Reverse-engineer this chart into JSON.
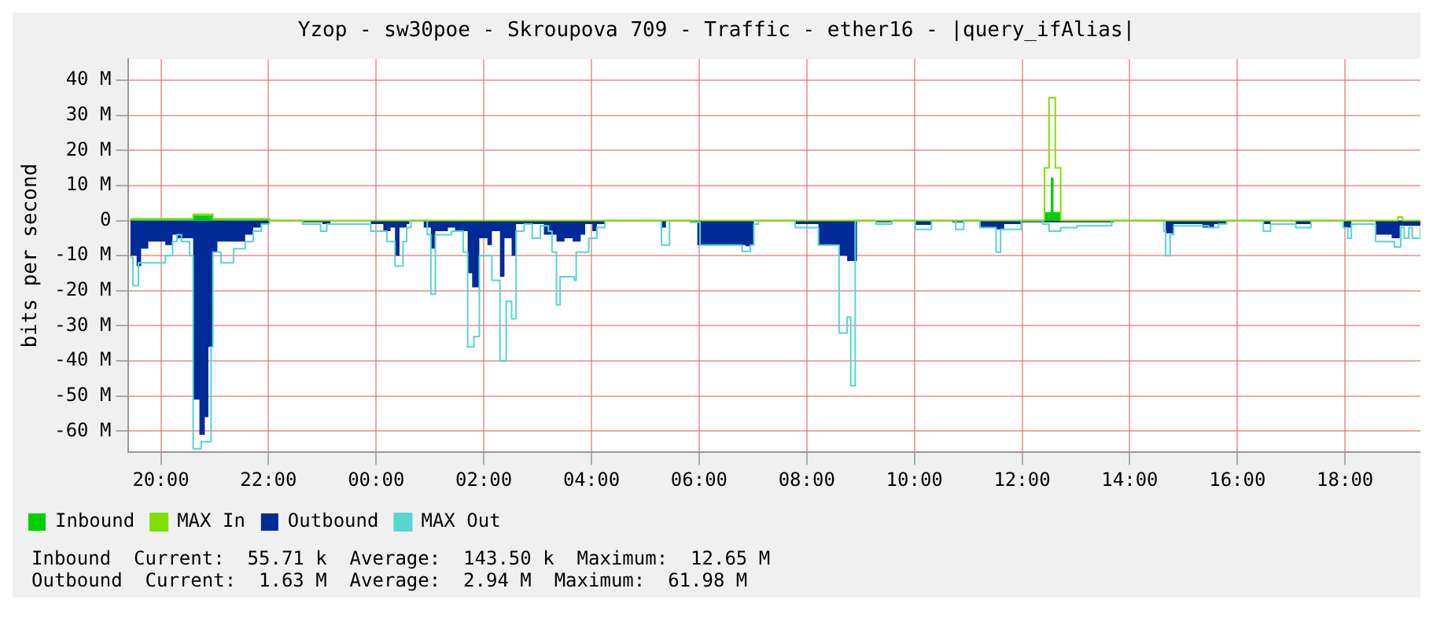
{
  "chart_data": {
    "type": "area",
    "title": "Yzop - sw30poe - Skroupova 709 - Traffic - ether16 - |query_ifAlias|",
    "ylabel": "bits per second",
    "xlim": [
      "--01-01T19:24",
      "--01-02T19:24"
    ],
    "xticks": [
      {
        "value": "--01-01T20:00",
        "label": "20:00"
      },
      {
        "value": "--01-01T22:00",
        "label": "22:00"
      },
      {
        "value": "--01-02T00:00",
        "label": "00:00"
      },
      {
        "value": "--01-02T02:00",
        "label": "02:00"
      },
      {
        "value": "--01-02T04:00",
        "label": "04:00"
      },
      {
        "value": "--01-02T06:00",
        "label": "06:00"
      },
      {
        "value": "--01-02T08:00",
        "label": "08:00"
      },
      {
        "value": "--01-02T10:00",
        "label": "10:00"
      },
      {
        "value": "--01-02T12:00",
        "label": "12:00"
      },
      {
        "value": "--01-02T14:00",
        "label": "14:00"
      },
      {
        "value": "--01-02T16:00",
        "label": "16:00"
      },
      {
        "value": "--01-02T18:00",
        "label": "18:00"
      }
    ],
    "ylim": [
      -66,
      46
    ],
    "yticks": [
      {
        "value": -60,
        "label": "-60 M"
      },
      {
        "value": -50,
        "label": "-50 M"
      },
      {
        "value": -40,
        "label": "-40 M"
      },
      {
        "value": -30,
        "label": "-30 M"
      },
      {
        "value": -20,
        "label": "-20 M"
      },
      {
        "value": -10,
        "label": "-10 M"
      },
      0,
      {
        "value": 10,
        "label": "10 M"
      },
      {
        "value": 20,
        "label": "20 M"
      },
      {
        "value": 30,
        "label": "30 M"
      },
      {
        "value": 40,
        "label": "40 M"
      }
    ],
    "grid": true,
    "legend": "bottom left",
    "series": [
      {
        "name": "Inbound",
        "type": "area",
        "color": "#00cf00",
        "x": [
          "--01-01T19:26",
          "--01-01T20:36",
          "--01-01T20:58",
          "--01-01T22:01",
          "--01-02T12:25",
          "--01-02T12:32",
          "--01-02T12:35",
          "--01-02T12:43",
          "--01-02T19:24"
        ],
        "values": [
          0.3,
          1.5,
          0.3,
          0,
          2.4,
          12.2,
          2.4,
          0,
          0
        ]
      },
      {
        "name": "MAX In",
        "type": "step",
        "color": "#80e000",
        "x": [
          "--01-01T19:26",
          "--01-01T20:36",
          "--01-01T20:58",
          "--01-01T22:01",
          "--01-02T12:23",
          "--01-02T12:25",
          "--01-02T12:30",
          "--01-02T12:37",
          "--01-02T12:43",
          "--01-02T18:48",
          "--01-02T18:59",
          "--01-02T19:04",
          "--01-02T19:24"
        ],
        "values": [
          0.5,
          1.8,
          0.5,
          0,
          0,
          15,
          35,
          15,
          0,
          0,
          1,
          0,
          0
        ]
      },
      {
        "name": "Outbound",
        "type": "area",
        "color": "#002a97",
        "x": [
          "--01-01T19:26",
          "--01-01T19:33",
          "--01-01T19:38",
          "--01-01T19:46",
          "--01-01T20:05",
          "--01-01T20:13",
          "--01-01T20:18",
          "--01-01T20:36",
          "--01-01T20:43",
          "--01-01T20:49",
          "--01-01T20:53",
          "--01-01T20:58",
          "--01-01T21:03",
          "--01-01T21:34",
          "--01-01T21:43",
          "--01-01T21:52",
          "--01-01T22:01",
          "--01-01T22:38",
          "--01-01T23:00",
          "--01-01T23:09",
          "--01-01T23:54",
          "--01-02T00:08",
          "--01-02T00:16",
          "--01-02T00:21",
          "--01-02T00:26",
          "--01-02T00:34",
          "--01-02T00:37",
          "--01-02T00:53",
          "--01-02T01:01",
          "--01-02T01:06",
          "--01-02T01:20",
          "--01-02T01:28",
          "--01-02T01:42",
          "--01-02T01:47",
          "--01-02T01:55",
          "--01-02T02:04",
          "--01-02T02:09",
          "--01-02T02:18",
          "--01-02T02:23",
          "--01-02T02:31",
          "--01-02T02:36",
          "--01-02T02:58",
          "--01-02T03:07",
          "--01-02T03:21",
          "--01-02T03:30",
          "--01-02T03:39",
          "--01-02T03:48",
          "--01-02T03:53",
          "--01-02T04:01",
          "--01-02T04:06",
          "--01-02T04:15",
          "--01-02T05:14",
          "--01-02T05:18",
          "--01-02T05:23",
          "--01-02T05:50",
          "--01-02T05:58",
          "--01-02T06:48",
          "--01-02T06:52",
          "--01-02T06:57",
          "--01-02T07:01",
          "--01-02T07:47",
          "--01-02T08:13",
          "--01-02T08:36",
          "--01-02T08:45",
          "--01-02T08:56",
          "--01-02T09:17",
          "--01-02T09:35",
          "--01-02T10:01",
          "--01-02T10:19",
          "--01-02T10:42",
          "--01-02T10:55",
          "--01-02T11:13",
          "--01-02T11:31",
          "--01-02T11:40",
          "--01-02T11:59",
          "--01-02T12:43",
          "--01-02T13:42",
          "--01-02T14:40",
          "--01-02T14:49",
          "--01-02T15:21",
          "--01-02T15:34",
          "--01-02T15:48",
          "--01-02T16:29",
          "--01-02T16:37",
          "--01-02T17:05",
          "--01-02T17:22",
          "--01-02T17:58",
          "--01-02T18:07",
          "--01-02T18:34",
          "--01-02T18:52",
          "--01-02T19:01",
          "--01-02T19:24"
        ],
        "values": [
          -10,
          -13,
          -8,
          -6,
          -7,
          -4,
          -5,
          -51,
          -61,
          -56,
          -36,
          -9,
          -6,
          -4,
          -2,
          -1,
          0,
          -0.5,
          -1,
          0,
          -1,
          -3,
          -2,
          -10,
          -2,
          -1,
          0,
          -2,
          -8,
          -3,
          -2,
          -3,
          -15,
          -19,
          -5,
          -7,
          -3,
          -16,
          -5,
          -10,
          -1,
          -1,
          -4,
          -6,
          -5,
          -6,
          -4,
          -1,
          -3,
          -1,
          0,
          0,
          -2,
          0,
          -0.5,
          -7,
          -7,
          -7.3,
          -7,
          0,
          -1,
          -7,
          -10,
          -11.5,
          0,
          -0.5,
          0,
          -1.2,
          0,
          -0.5,
          0,
          -2,
          -2.5,
          -1,
          -0.5,
          -0.5,
          0,
          -3.6,
          -1,
          -2,
          -1,
          0,
          -1,
          0,
          -1,
          0,
          -2,
          0,
          -4,
          -5,
          -1.5,
          -1.5
        ]
      },
      {
        "name": "MAX Out",
        "type": "step",
        "color": "#55d6d3",
        "x": [
          "--01-01T19:26",
          "--01-01T19:29",
          "--01-01T19:35",
          "--01-01T20:00",
          "--01-01T20:05",
          "--01-01T20:13",
          "--01-01T20:18",
          "--01-01T20:23",
          "--01-01T20:32",
          "--01-01T20:36",
          "--01-01T20:45",
          "--01-01T20:56",
          "--01-01T20:58",
          "--01-01T21:07",
          "--01-01T21:21",
          "--01-01T21:34",
          "--01-01T21:43",
          "--01-01T21:52",
          "--01-01T22:01",
          "--01-01T22:38",
          "--01-01T22:58",
          "--01-01T23:05",
          "--01-01T23:54",
          "--01-02T00:12",
          "--01-02T00:21",
          "--01-02T00:30",
          "--01-02T00:34",
          "--01-02T00:39",
          "--01-02T00:57",
          "--01-02T01:01",
          "--01-02T01:06",
          "--01-02T01:24",
          "--01-02T01:37",
          "--01-02T01:42",
          "--01-02T01:49",
          "--01-02T01:55",
          "--01-02T02:09",
          "--01-02T02:18",
          "--01-02T02:25",
          "--01-02T02:31",
          "--01-02T02:36",
          "--01-02T02:45",
          "--01-02T02:54",
          "--01-02T03:03",
          "--01-02T03:12",
          "--01-02T03:16",
          "--01-02T03:21",
          "--01-02T03:25",
          "--01-02T03:41",
          "--01-02T03:43",
          "--01-02T03:57",
          "--01-02T04:06",
          "--01-02T04:15",
          "--01-02T05:14",
          "--01-02T05:18",
          "--01-02T05:27",
          "--01-02T05:50",
          "--01-02T06:01",
          "--01-02T06:48",
          "--01-02T06:57",
          "--01-02T07:01",
          "--01-02T07:06",
          "--01-02T07:47",
          "--01-02T08:13",
          "--01-02T08:36",
          "--01-02T08:45",
          "--01-02T08:49",
          "--01-02T08:54",
          "--01-02T09:17",
          "--01-02T09:35",
          "--01-02T10:01",
          "--01-02T10:19",
          "--01-02T10:46",
          "--01-02T10:55",
          "--01-02T11:13",
          "--01-02T11:31",
          "--01-02T11:36",
          "--01-02T11:59",
          "--01-02T12:23",
          "--01-02T12:30",
          "--01-02T12:43",
          "--01-02T13:01",
          "--01-02T13:40",
          "--01-02T14:38",
          "--01-02T14:40",
          "--01-02T14:45",
          "--01-02T14:49",
          "--01-02T15:28",
          "--01-02T15:39",
          "--01-02T15:48",
          "--01-02T16:29",
          "--01-02T16:37",
          "--01-02T17:05",
          "--01-02T17:22",
          "--01-02T17:58",
          "--01-02T18:03",
          "--01-02T18:07",
          "--01-02T18:34",
          "--01-02T18:55",
          "--01-02T19:02",
          "--01-02T19:06",
          "--01-02T19:11",
          "--01-02T19:15",
          "--01-02T19:24"
        ],
        "values": [
          -10.5,
          -18.5,
          -12,
          -12,
          -10,
          -6,
          -4,
          -6,
          -10,
          -65,
          -63,
          -36,
          -9,
          -12,
          -8,
          -6,
          -3,
          -1,
          0,
          -1,
          -3,
          -1,
          -3,
          -6,
          -13,
          -6,
          -2,
          0,
          -4,
          -21,
          -4,
          -3,
          -9,
          -36,
          -33,
          -10,
          -17,
          -40,
          -23,
          -28,
          -3,
          -1,
          -5,
          -1.5,
          -3,
          -9,
          -24,
          -16,
          -17,
          -9,
          -5,
          -2,
          0,
          0,
          -7,
          0,
          -0.5,
          -7,
          -8.8,
          -7,
          -1,
          0,
          -2,
          -7,
          -32,
          -27.5,
          -47,
          0,
          -1,
          0,
          -2.5,
          0,
          -2.5,
          0,
          -2,
          -9,
          -2.5,
          0,
          -1,
          -3,
          -2,
          -1.5,
          0,
          -3,
          -10,
          -4,
          -1.5,
          -2,
          -1,
          0,
          -3,
          -1,
          -2,
          0,
          -2,
          -5,
          -1,
          -6,
          -7.5,
          -2,
          -5,
          -2,
          -5,
          -2
        ]
      }
    ],
    "annotations": [
      "Inbound  Current:  55.71 k  Average:  143.50 k  Maximum:  12.65 M",
      "Outbound  Current:  1.63 M  Average:  2.94 M  Maximum:  61.98 M"
    ]
  }
}
